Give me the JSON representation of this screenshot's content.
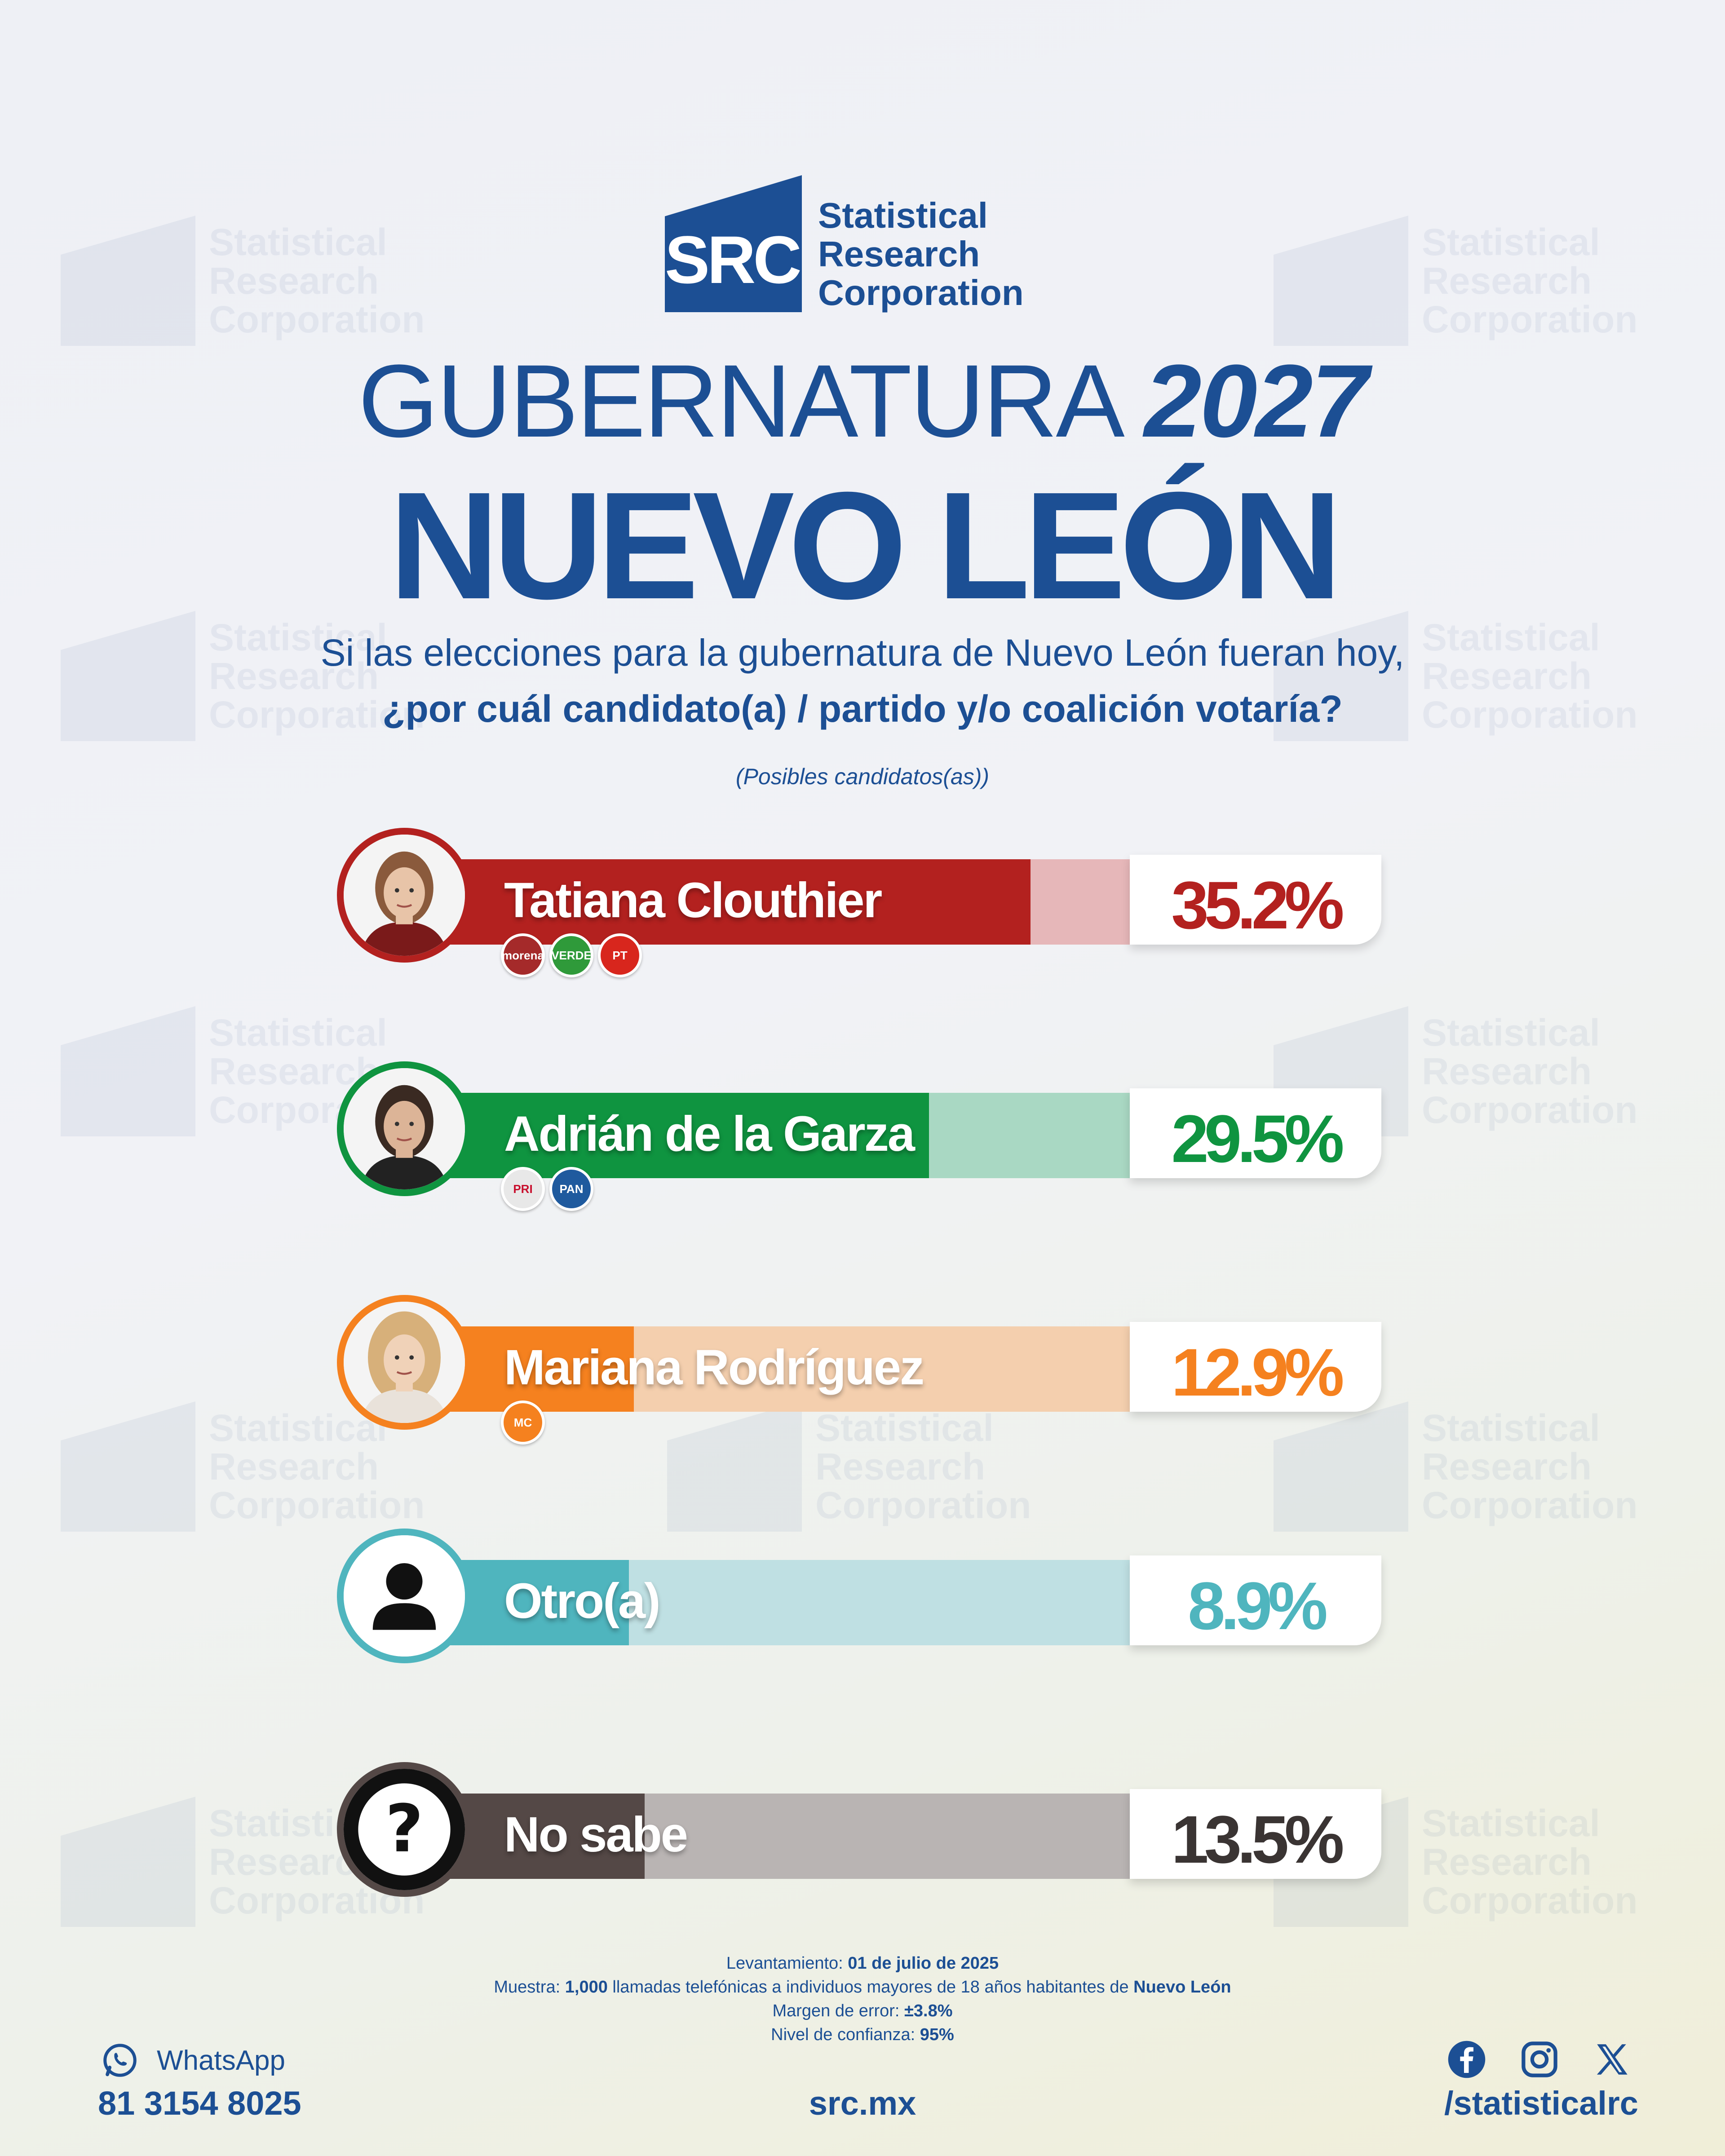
{
  "brand": {
    "logo_initials": "SRC",
    "logo_line1": "Statistical",
    "logo_line2": "Research",
    "logo_line3": "Corporation",
    "primary_color": "#1c4f94"
  },
  "header": {
    "title_word": "GUBERNATURA",
    "title_year": "2027",
    "subtitle": "NUEVO LEÓN"
  },
  "question": {
    "line1": "Si las elecciones para la gubernatura de Nuevo León fueran hoy,",
    "line2": "¿por cuál candidato(a) / partido y/o coalición votaría?",
    "note": "(Posibles candidatos(as))"
  },
  "chart_data": {
    "type": "bar",
    "categories": [
      "Tatiana Clouthier",
      "Adrián de la Garza",
      "Mariana Rodríguez",
      "Otro(a)",
      "No sabe"
    ],
    "values": [
      35.2,
      29.5,
      12.9,
      8.9,
      13.5
    ],
    "labels": [
      "35.2%",
      "29.5%",
      "12.9%",
      "8.9%",
      "13.5%"
    ],
    "colors": [
      "#b3211f",
      "#0f9440",
      "#f5811f",
      "#4fb5be",
      "#544846"
    ],
    "track_colors": [
      "#e6b7b9",
      "#a9d8c3",
      "#f4cfae",
      "#bfe0e3",
      "#b9b4b3"
    ],
    "text_colors": [
      "#b3211f",
      "#0f9440",
      "#f5811f",
      "#4fb5be",
      "#3a3433"
    ],
    "avatar_icons": [
      "candidate-photo",
      "candidate-photo",
      "candidate-photo",
      "person-icon",
      "question-mark-icon"
    ],
    "parties": [
      [
        "morena",
        "VERDE",
        "PT"
      ],
      [
        "PRI",
        "PAN"
      ],
      [
        "MC"
      ],
      [],
      []
    ],
    "party_colors": [
      [
        "#a52a2a",
        "#2f9a3a",
        "#d8261d"
      ],
      [
        "#e8e8e8",
        "#1f5a9e"
      ],
      [
        "#f5811f"
      ],
      [],
      []
    ]
  },
  "methodology": {
    "date_label": "Levantamiento:",
    "date_value": "01 de julio de 2025",
    "sample_label": "Muestra:",
    "sample_value": "1,000",
    "sample_text": "llamadas telefónicas a individuos mayores de 18 años habitantes de",
    "sample_place": "Nuevo León",
    "margin_label": "Margen de error:",
    "margin_value": "±3.8%",
    "confidence_label": "Nivel de confianza:",
    "confidence_value": "95%"
  },
  "footer": {
    "whatsapp_label": "WhatsApp",
    "phone": "81 3154 8025",
    "website": "src.mx",
    "handle": "/statisticalrc",
    "social_icons": [
      "facebook-icon",
      "instagram-icon",
      "x-icon"
    ]
  }
}
